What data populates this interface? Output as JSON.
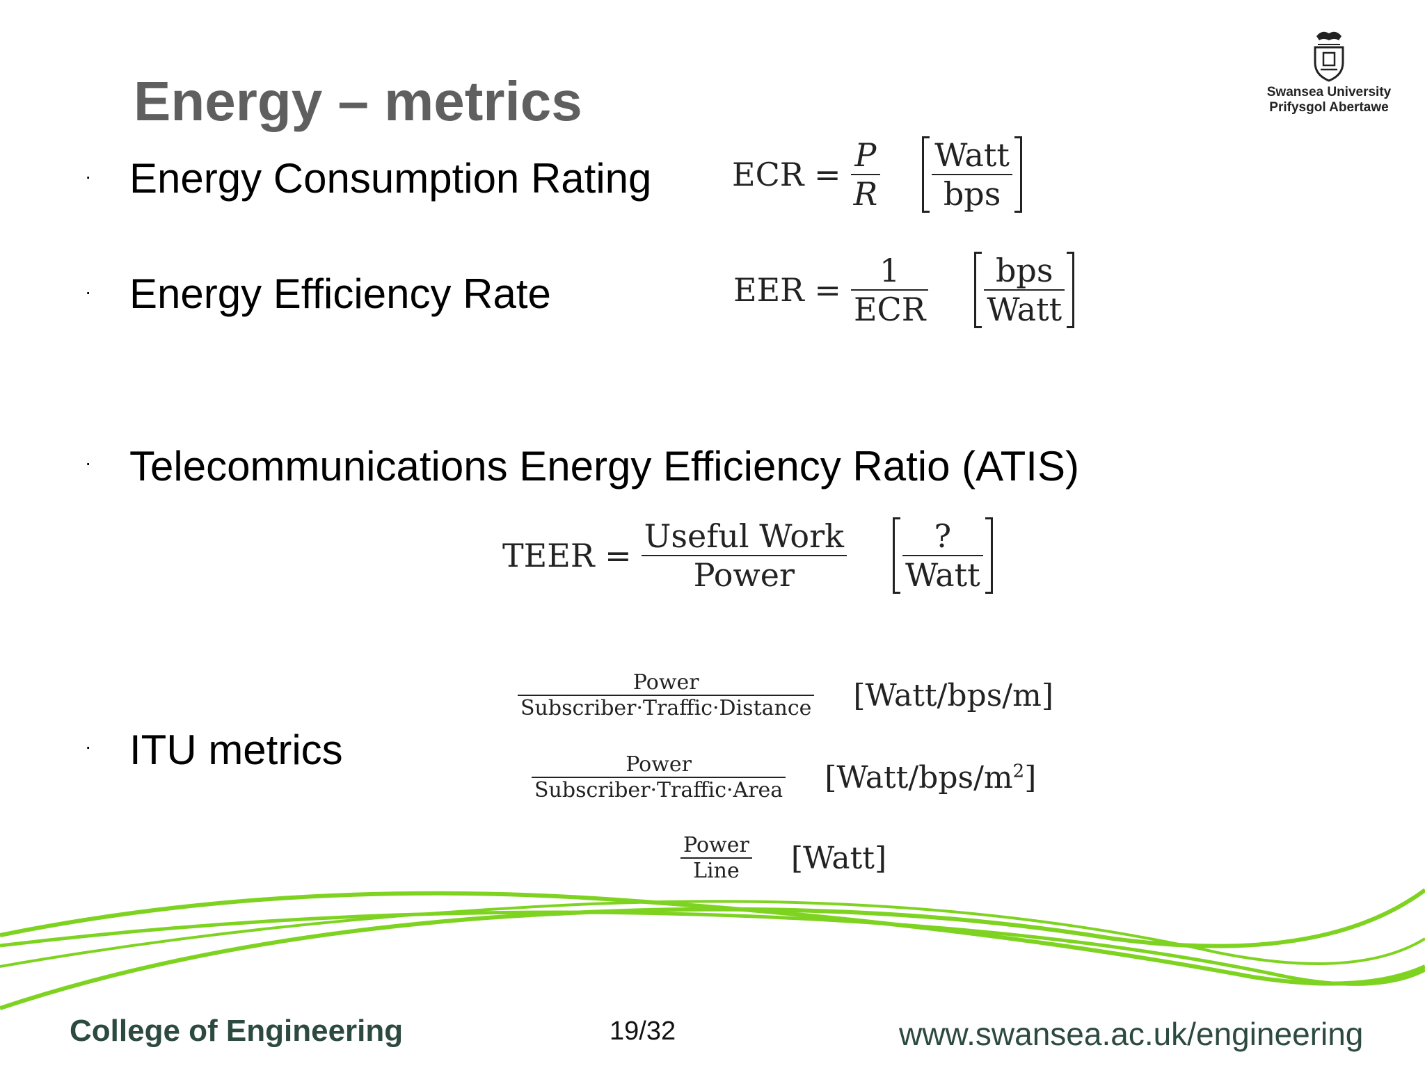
{
  "slide": {
    "title": "Energy – metrics",
    "bullet_marker": "·"
  },
  "logo": {
    "line1": "Swansea University",
    "line2": "Prifysgol Abertawe"
  },
  "bullets": [
    {
      "text": "Energy Consumption Rating"
    },
    {
      "text": "Energy Efficiency Rate"
    },
    {
      "text": "Telecommunications Energy Efficiency Ratio (ATIS)"
    },
    {
      "text": "ITU metrics"
    }
  ],
  "formulas": {
    "ecr": {
      "lhs": "ECR =",
      "num": "P",
      "den": "R",
      "unit_num": "Watt",
      "unit_den": "bps"
    },
    "eer": {
      "lhs": "EER =",
      "num": "1",
      "den": "ECR",
      "unit_num": "bps",
      "unit_den": "Watt"
    },
    "teer": {
      "lhs": "TEER =",
      "num": "Useful Work",
      "den": "Power",
      "unit_num": "?",
      "unit_den": "Watt"
    },
    "itu1": {
      "num": "Power",
      "den": "Subscriber·Traffic·Distance",
      "unit": "[Watt/bps/m]"
    },
    "itu2": {
      "num": "Power",
      "den": "Subscriber·Traffic·Area",
      "unit": "[Watt/bps/m",
      "unit_sup": "2",
      "unit_close": "]"
    },
    "itu3": {
      "num": "Power",
      "den": "Line",
      "unit": "[Watt]"
    }
  },
  "footer": {
    "college": "College of Engineering",
    "page": "19/32",
    "url": "www.swansea.ac.uk/engineering"
  },
  "colors": {
    "title": "#5f5f5f",
    "wave": "#7ed321",
    "footer_text": "#2c4a40"
  }
}
